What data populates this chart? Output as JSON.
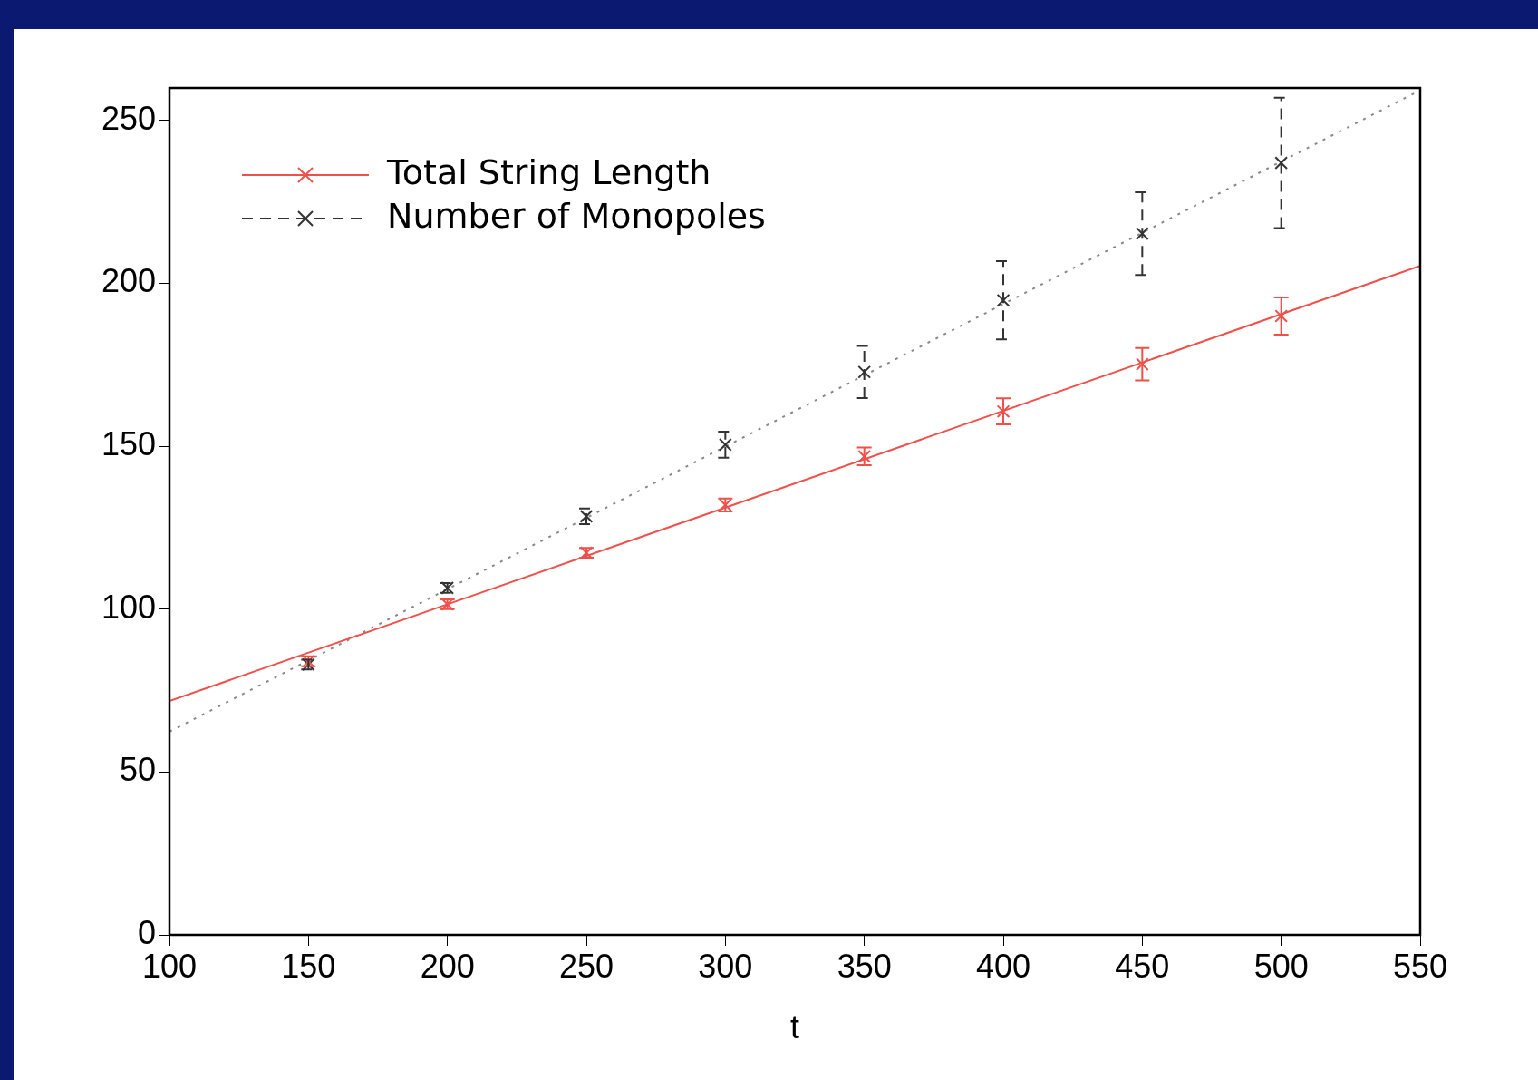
{
  "chart_data": {
    "type": "scatter",
    "xlabel": "t",
    "xlim": [
      100,
      550
    ],
    "ylim": [
      0,
      260
    ],
    "xticks": [
      100,
      150,
      200,
      250,
      300,
      350,
      400,
      450,
      500,
      550
    ],
    "yticks": [
      0,
      50,
      100,
      150,
      200,
      250
    ],
    "grid": false,
    "legend": "top left",
    "marker": "cross",
    "series": [
      {
        "name": "Total String Length",
        "color": "#f0504a",
        "x": [
          150,
          200,
          250,
          300,
          350,
          400,
          450,
          500
        ],
        "values": [
          84,
          101.5,
          117.3,
          132,
          146.9,
          160.7,
          175.2,
          190
        ],
        "errors": [
          1.5,
          1.5,
          1.5,
          2,
          2.7,
          4,
          5,
          5.7
        ],
        "line_style": "solid"
      },
      {
        "name": "Number of Monopoles",
        "color": "#333333",
        "x": [
          150,
          200,
          250,
          300,
          350,
          400,
          450,
          500
        ],
        "values": [
          83,
          106.5,
          128.5,
          150.5,
          172.8,
          194.8,
          215.3,
          237
        ],
        "errors": [
          1.5,
          1.5,
          2.4,
          4,
          8,
          12,
          12.7,
          20
        ],
        "line_style": "dashed"
      },
      {
        "type": "line",
        "color": "#f0504a",
        "x": [
          100,
          550
        ],
        "values": [
          71.8,
          205.4
        ],
        "line_style": "solid",
        "marker": "none"
      },
      {
        "type": "line",
        "color": "#888888",
        "x": [
          100,
          550
        ],
        "values": [
          62.4,
          259.3
        ],
        "line_style": "dotted",
        "marker": "none"
      }
    ]
  }
}
